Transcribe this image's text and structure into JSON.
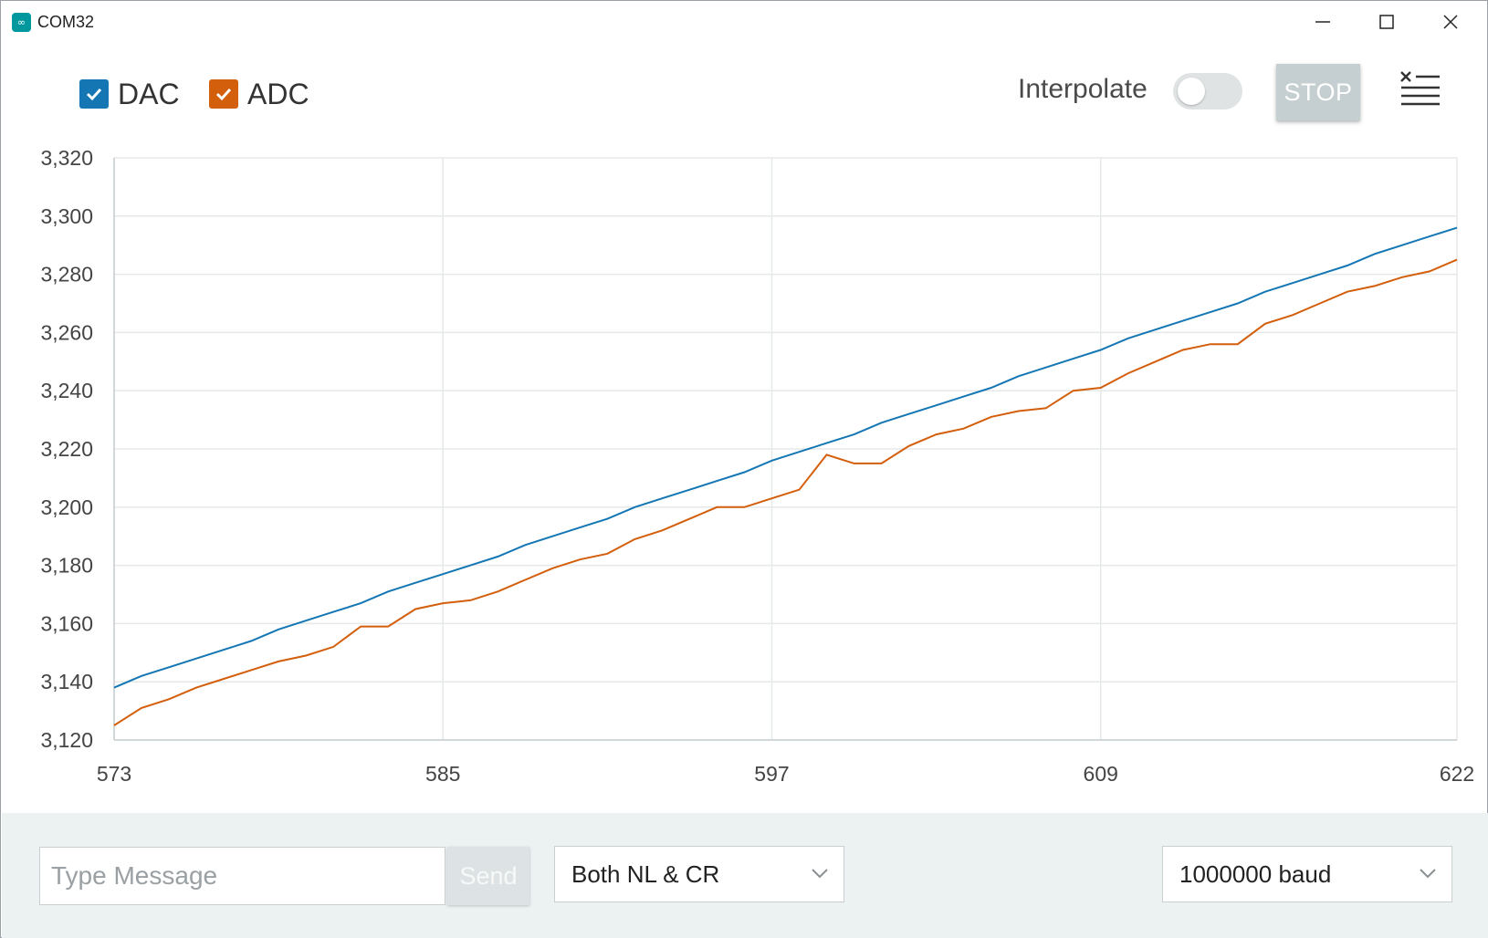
{
  "window": {
    "title": "COM32",
    "app_icon": "arduino-infinity-icon",
    "controls": [
      "minimize-icon",
      "maximize-icon",
      "close-icon"
    ]
  },
  "toolbar": {
    "series_toggles": [
      {
        "label": "DAC",
        "checked": true,
        "color": "#1477b4"
      },
      {
        "label": "ADC",
        "checked": true,
        "color": "#d35e0b"
      }
    ],
    "interpolate_label": "Interpolate",
    "interpolate_on": false,
    "stop_label": "STOP",
    "clear_icon": "clear-list-icon"
  },
  "chart_data": {
    "type": "line",
    "x_ticks": [
      "573",
      "585",
      "597",
      "609",
      "622"
    ],
    "y_ticks": [
      "3,120",
      "3,140",
      "3,160",
      "3,180",
      "3,200",
      "3,220",
      "3,240",
      "3,260",
      "3,280",
      "3,300",
      "3,320"
    ],
    "xlim": [
      573,
      622
    ],
    "ylim": [
      3120,
      3320
    ],
    "grid": true,
    "legend": "top-left",
    "x": [
      573,
      574,
      575,
      576,
      577,
      578,
      579,
      580,
      581,
      582,
      583,
      584,
      585,
      586,
      587,
      588,
      589,
      590,
      591,
      592,
      593,
      594,
      595,
      596,
      597,
      598,
      599,
      600,
      601,
      602,
      603,
      604,
      605,
      606,
      607,
      608,
      609,
      610,
      611,
      612,
      613,
      614,
      615,
      616,
      617,
      618,
      619,
      620,
      621,
      622
    ],
    "series": [
      {
        "name": "DAC",
        "color": "#1477b4",
        "values": [
          3138,
          3142,
          3145,
          3148,
          3151,
          3154,
          3158,
          3161,
          3164,
          3167,
          3171,
          3174,
          3177,
          3180,
          3183,
          3187,
          3190,
          3193,
          3196,
          3200,
          3203,
          3206,
          3209,
          3212,
          3216,
          3219,
          3222,
          3225,
          3229,
          3232,
          3235,
          3238,
          3241,
          3245,
          3248,
          3251,
          3254,
          3258,
          3261,
          3264,
          3267,
          3270,
          3274,
          3277,
          3280,
          3283,
          3287,
          3290,
          3293,
          3296
        ]
      },
      {
        "name": "ADC",
        "color": "#d35e0b",
        "values": [
          3125,
          3131,
          3134,
          3138,
          3141,
          3144,
          3147,
          3149,
          3152,
          3159,
          3159,
          3165,
          3167,
          3168,
          3171,
          3175,
          3179,
          3182,
          3184,
          3189,
          3192,
          3196,
          3200,
          3200,
          3203,
          3206,
          3218,
          3215,
          3215,
          3221,
          3225,
          3227,
          3231,
          3233,
          3234,
          3240,
          3241,
          3246,
          3250,
          3254,
          3256,
          3256,
          3263,
          3266,
          3270,
          3274,
          3276,
          3279,
          3281,
          3285
        ]
      }
    ]
  },
  "bottom": {
    "message_placeholder": "Type Message",
    "send_label": "Send",
    "line_ending": "Both NL & CR",
    "baud": "1000000 baud"
  }
}
